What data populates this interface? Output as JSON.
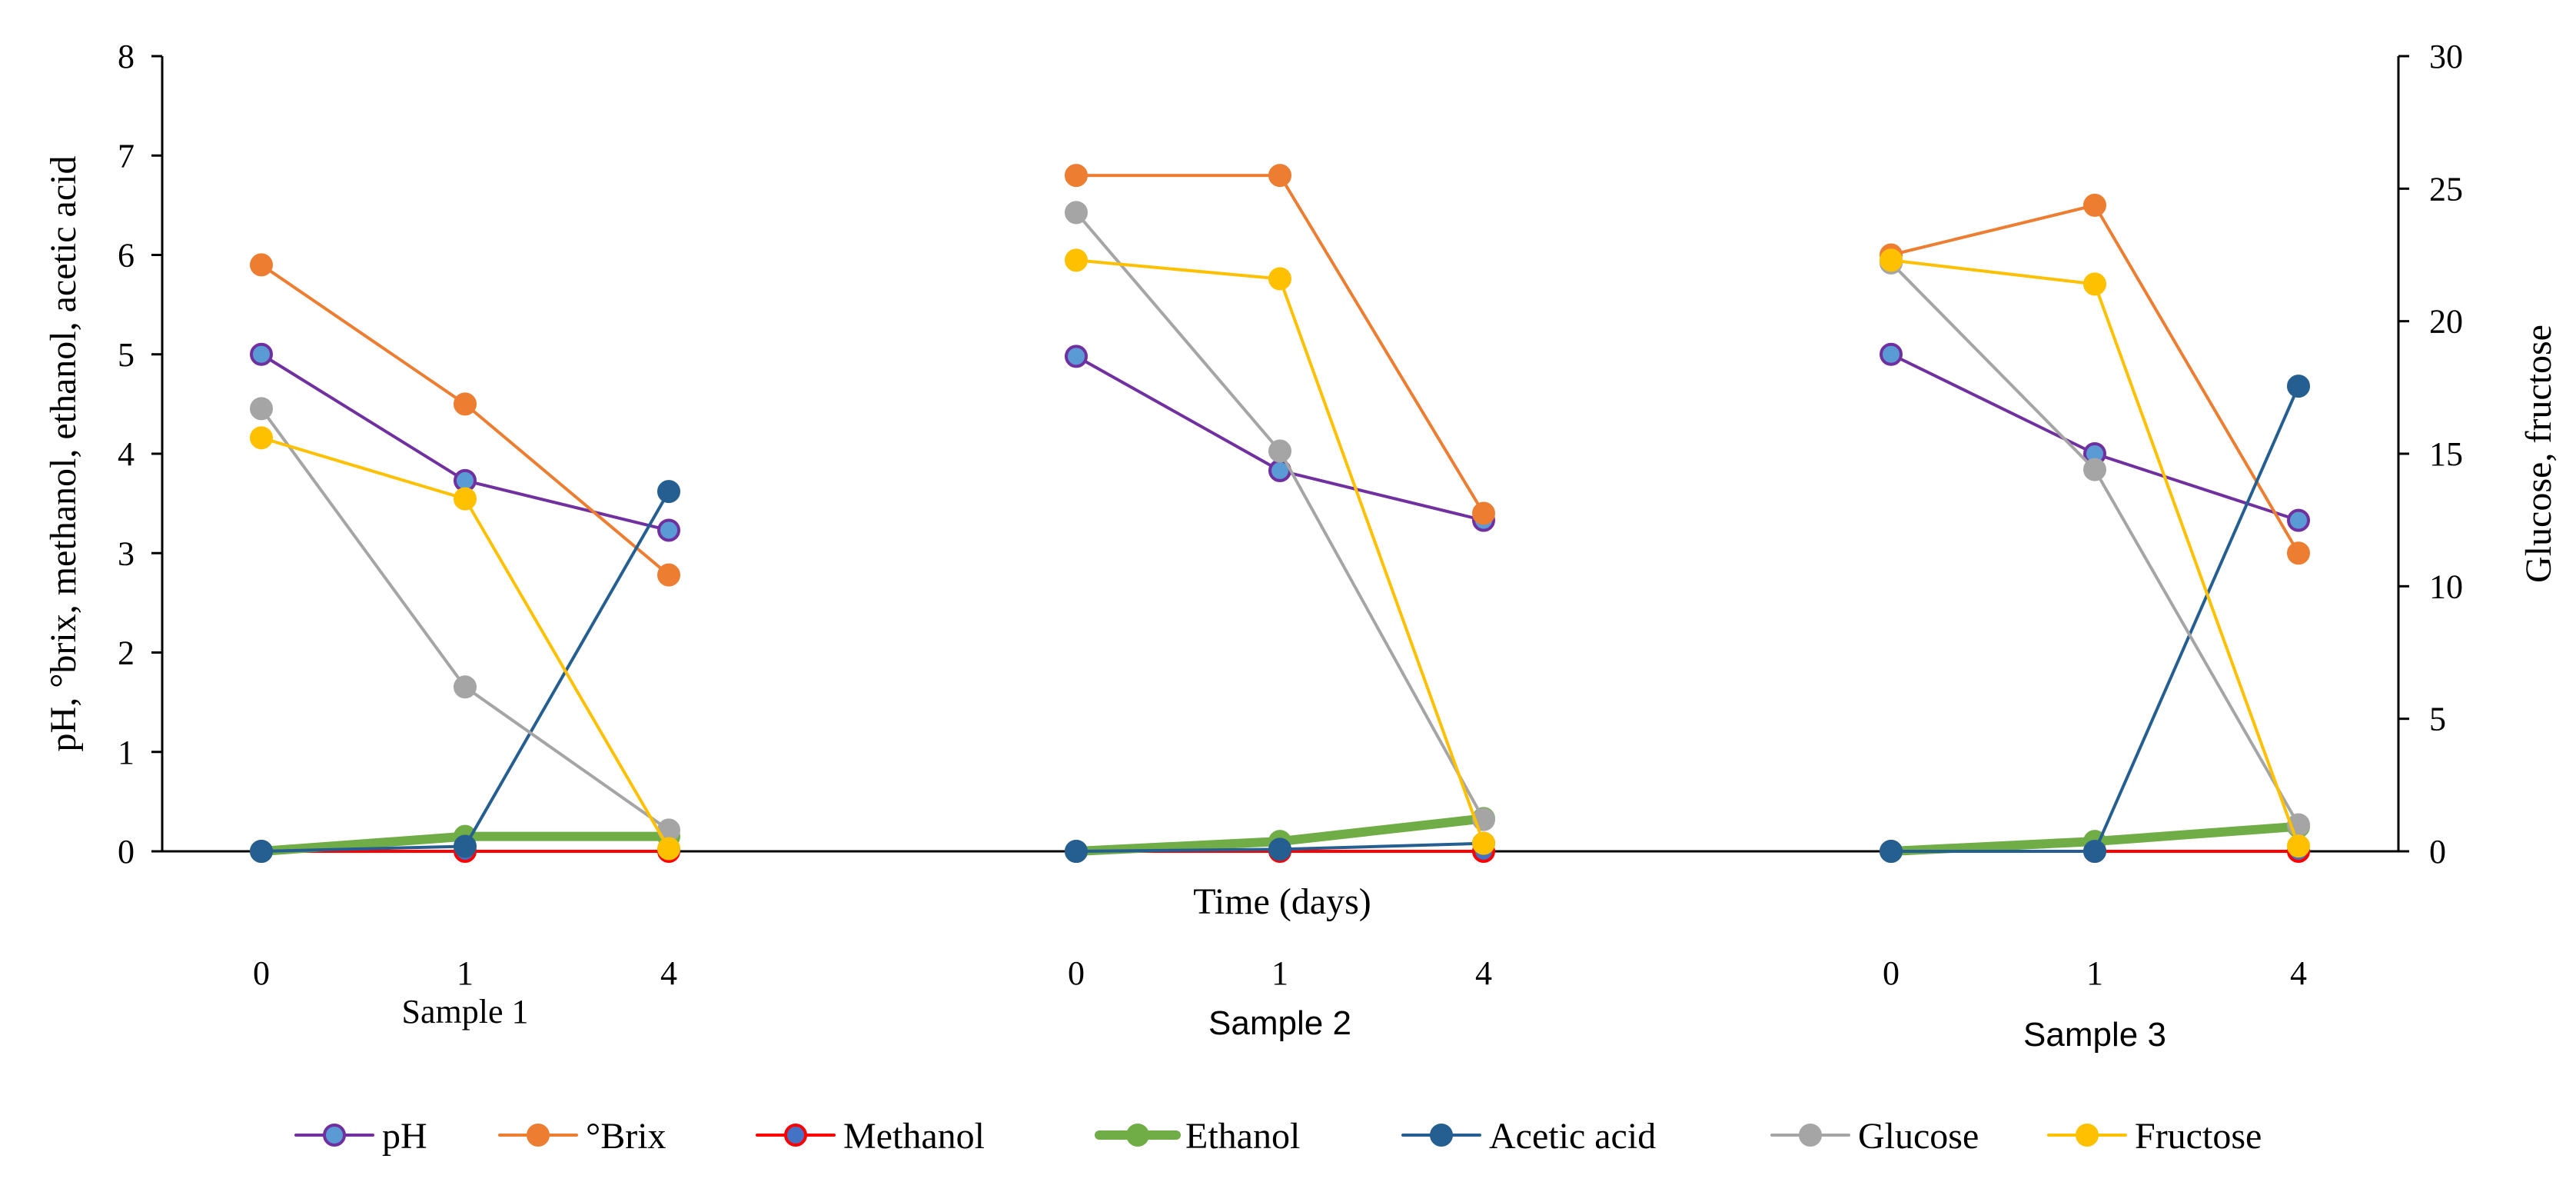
{
  "chart_data": {
    "type": "line",
    "title": "",
    "xlabel": "Time (days)",
    "ylabel_left": "pH, °brix, methanol, ethanol, acetic acid",
    "ylabel_right": "Glucose, fructose",
    "ylim_left": [
      0,
      8
    ],
    "ylim_right": [
      0,
      30
    ],
    "yticks_left": [
      "0",
      "1",
      "2",
      "3",
      "4",
      "5",
      "6",
      "7",
      "8"
    ],
    "yticks_right": [
      "0",
      "5",
      "10",
      "15",
      "20",
      "25",
      "30"
    ],
    "groups": [
      {
        "name": "Sample 1",
        "days": [
          "0",
          "1",
          "4"
        ]
      },
      {
        "name": "Sample 2",
        "days": [
          "0",
          "1",
          "4"
        ]
      },
      {
        "name": "Sample 3",
        "days": [
          "0",
          "1",
          "4"
        ]
      }
    ],
    "series": [
      {
        "name": "pH",
        "axis": "left",
        "color": "#7030A0",
        "marker_fill": "#5B9BD5",
        "values": [
          [
            5.0,
            3.73,
            3.23
          ],
          [
            4.98,
            3.83,
            3.33
          ],
          [
            5.0,
            4.0,
            3.33
          ]
        ]
      },
      {
        "name": "°Brix",
        "axis": "left",
        "color": "#ED7D31",
        "marker_fill": "#ED7D31",
        "values": [
          [
            5.9,
            4.5,
            2.78
          ],
          [
            6.8,
            6.8,
            3.4
          ],
          [
            6.0,
            6.5,
            3.0
          ]
        ]
      },
      {
        "name": "Methanol",
        "axis": "left",
        "color": "#FF0000",
        "marker_fill": "#4472C4",
        "values": [
          [
            0.0,
            0.0,
            0.0
          ],
          [
            0.0,
            0.0,
            0.0
          ],
          [
            0.0,
            0.0,
            0.0
          ]
        ]
      },
      {
        "name": "Ethanol",
        "axis": "left",
        "color": "#70AD47",
        "marker_fill": "#70AD47",
        "thick": true,
        "values": [
          [
            0.0,
            0.15,
            0.15
          ],
          [
            0.0,
            0.1,
            0.33
          ],
          [
            0.0,
            0.1,
            0.25
          ]
        ]
      },
      {
        "name": "Acetic acid",
        "axis": "left",
        "color": "#255E91",
        "marker_fill": "#255E91",
        "values": [
          [
            0.0,
            0.05,
            3.62
          ],
          [
            0.0,
            0.02,
            0.08
          ],
          [
            0.0,
            0.0,
            4.68
          ]
        ]
      },
      {
        "name": "Glucose",
        "axis": "right",
        "color": "#A5A5A5",
        "marker_fill": "#A5A5A5",
        "values": [
          [
            16.7,
            6.2,
            0.8
          ],
          [
            24.1,
            15.1,
            1.2
          ],
          [
            22.2,
            14.4,
            1.0
          ]
        ]
      },
      {
        "name": "Fructose",
        "axis": "right",
        "color": "#FFC000",
        "marker_fill": "#FFC000",
        "values": [
          [
            15.6,
            13.3,
            0.1
          ],
          [
            22.3,
            21.6,
            0.3
          ],
          [
            22.3,
            21.4,
            0.2
          ]
        ]
      }
    ]
  }
}
